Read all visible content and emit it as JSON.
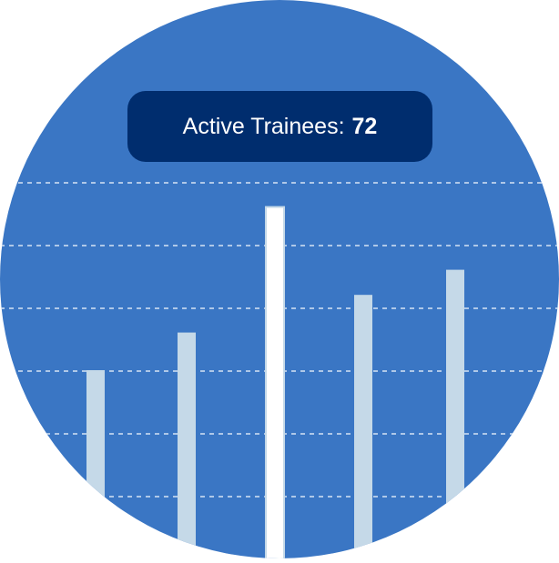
{
  "badge": {
    "label": "Active Trainees:",
    "value": "72"
  },
  "colors": {
    "background": "#3a76c4",
    "bar": "#c5d9e8",
    "highlight_bar": "#ffffff",
    "badge": "#002d6e",
    "grid": "#d6e4f3"
  },
  "chart_data": {
    "type": "bar",
    "title": "",
    "xlabel": "",
    "ylabel": "",
    "grid": true,
    "grid_style": "dashed horizontal",
    "values": [
      3.0,
      3.6,
      5.6,
      4.2,
      4.6
    ],
    "highlight_index": 2
  }
}
